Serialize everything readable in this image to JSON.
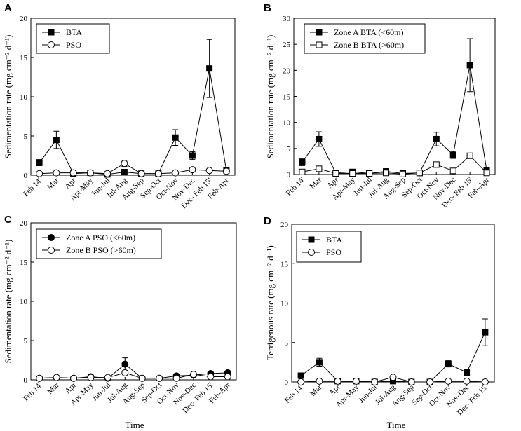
{
  "figure": {
    "x_axis_title": "Time"
  },
  "chart_data": [
    {
      "panel": "A",
      "type": "line",
      "xlabel": "",
      "ylabel": "Sedimentation rate (mg cm⁻² d⁻¹)",
      "ylim": [
        0,
        20
      ],
      "yticks": [
        0,
        5,
        10,
        15,
        20
      ],
      "categories": [
        "Feb 14'",
        "Mar",
        "Apr",
        "Apr-May",
        "Jun-Jul",
        "Jul-Aug",
        "Aug-Sep",
        "Sep-Oct",
        "Oct-Nov",
        "Nov-Dec",
        "Dec- Feb 15'",
        "Feb-Apr"
      ],
      "legend_position": "top-left",
      "series": [
        {
          "name": "BTA",
          "marker": "filled-square",
          "values": [
            1.6,
            4.5,
            0.2,
            0.3,
            0.1,
            0.4,
            0.2,
            0.2,
            4.8,
            2.5,
            13.6,
            0.6
          ],
          "errors": [
            0.4,
            1.1,
            0,
            0,
            0,
            0,
            0,
            0,
            1.0,
            0.5,
            3.7,
            0
          ]
        },
        {
          "name": "PSO",
          "marker": "open-circle",
          "values": [
            0.2,
            0.3,
            0.3,
            0.3,
            0.2,
            1.5,
            0.2,
            0.2,
            0.3,
            0.7,
            0.6,
            0.5
          ],
          "errors": [
            0,
            0,
            0,
            0,
            0,
            0.4,
            0,
            0,
            0,
            0,
            0,
            0
          ]
        }
      ]
    },
    {
      "panel": "B",
      "type": "line",
      "xlabel": "",
      "ylabel": "Sedimentation rate (mg cm⁻² d⁻¹)",
      "ylim": [
        0,
        30
      ],
      "yticks": [
        0,
        5,
        10,
        15,
        20,
        25,
        30
      ],
      "categories": [
        "Feb 14'",
        "Mar",
        "Apr",
        "Apr-May",
        "Jun-Jul",
        "Jul-Aug",
        "Aug-Sep",
        "Sep-Oct",
        "Oct-Nov",
        "Nov-Dec",
        "Dec- Feb 15'",
        "Feb-Apr"
      ],
      "legend_position": "top-left",
      "series": [
        {
          "name": "Zone A BTA (<60m)",
          "marker": "filled-square",
          "values": [
            2.4,
            6.8,
            0.3,
            0.5,
            0.2,
            0.6,
            0.2,
            0.3,
            6.8,
            3.8,
            21.0,
            0.8
          ],
          "errors": [
            0.7,
            1.4,
            0,
            0,
            0,
            0,
            0,
            0,
            1.3,
            0.7,
            5.1,
            0
          ]
        },
        {
          "name": "Zone B BTA (>60m)",
          "marker": "open-square",
          "values": [
            0.5,
            1.1,
            0.2,
            0.2,
            0.2,
            0.3,
            0.1,
            0.3,
            1.9,
            0.7,
            3.6,
            0.3
          ],
          "errors": [
            0,
            0,
            0,
            0,
            0,
            0,
            0,
            0,
            0,
            0,
            0,
            0
          ]
        }
      ]
    },
    {
      "panel": "C",
      "type": "line",
      "xlabel": "Time",
      "ylabel": "Sedimentation rate (mg cm⁻² d⁻¹)",
      "ylim": [
        0,
        20
      ],
      "yticks": [
        0,
        5,
        10,
        15,
        20
      ],
      "categories": [
        "Feb 14'",
        "Mar",
        "Apr",
        "Apr-May",
        "Jun-Jul",
        "Jul-Aug",
        "Aug-Sep",
        "Sep-Oct",
        "Oct-Nov",
        "Nov-Dec",
        "Dec- Feb 15'",
        "Feb-Apr"
      ],
      "legend_position": "top-left",
      "series": [
        {
          "name": "Zone A PSO (<60m)",
          "marker": "filled-circle",
          "values": [
            0.2,
            0.3,
            0.2,
            0.4,
            0.2,
            2.0,
            0.2,
            0.2,
            0.5,
            0.6,
            0.8,
            0.9
          ],
          "errors": [
            0,
            0,
            0,
            0,
            0,
            0.8,
            0,
            0,
            0,
            0,
            0,
            0
          ]
        },
        {
          "name": "Zone B PSO (>60m)",
          "marker": "open-circle",
          "values": [
            0.2,
            0.3,
            0.2,
            0.3,
            0.3,
            0.9,
            0.2,
            0.2,
            0.2,
            0.7,
            0.4,
            0.4
          ],
          "errors": [
            0,
            0,
            0,
            0,
            0,
            0,
            0,
            0,
            0,
            0,
            0,
            0
          ]
        }
      ]
    },
    {
      "panel": "D",
      "type": "line",
      "xlabel": "Time",
      "ylabel": "Terrigenous rate (mg cm⁻² d⁻¹)",
      "ylim": [
        0,
        20
      ],
      "yticks": [
        0,
        5,
        10,
        15,
        20
      ],
      "categories": [
        "Feb 14'",
        "Mar",
        "Apr",
        "Apr-May",
        "Jun-Jul",
        "Jul-Aug",
        "Aug-Sep",
        "Sep-Oct",
        "Oct-Nov",
        "Nov-Dec",
        "Dec- Feb 15'"
      ],
      "legend_position": "top-left",
      "series": [
        {
          "name": "BTA",
          "marker": "filled-square",
          "values": [
            0.8,
            2.5,
            0.1,
            0.1,
            0.0,
            0.1,
            0.0,
            0.0,
            2.3,
            1.2,
            6.3
          ],
          "errors": [
            0,
            0.5,
            0,
            0,
            0,
            0,
            0,
            0,
            0.4,
            0,
            1.7
          ]
        },
        {
          "name": "PSO",
          "marker": "open-circle",
          "values": [
            0.0,
            0.1,
            0.1,
            0.1,
            0.0,
            0.6,
            0.0,
            0.0,
            0.1,
            0.1,
            0.0
          ],
          "errors": [
            0,
            0,
            0,
            0,
            0,
            0,
            0,
            0,
            0,
            0,
            0
          ]
        }
      ]
    }
  ]
}
